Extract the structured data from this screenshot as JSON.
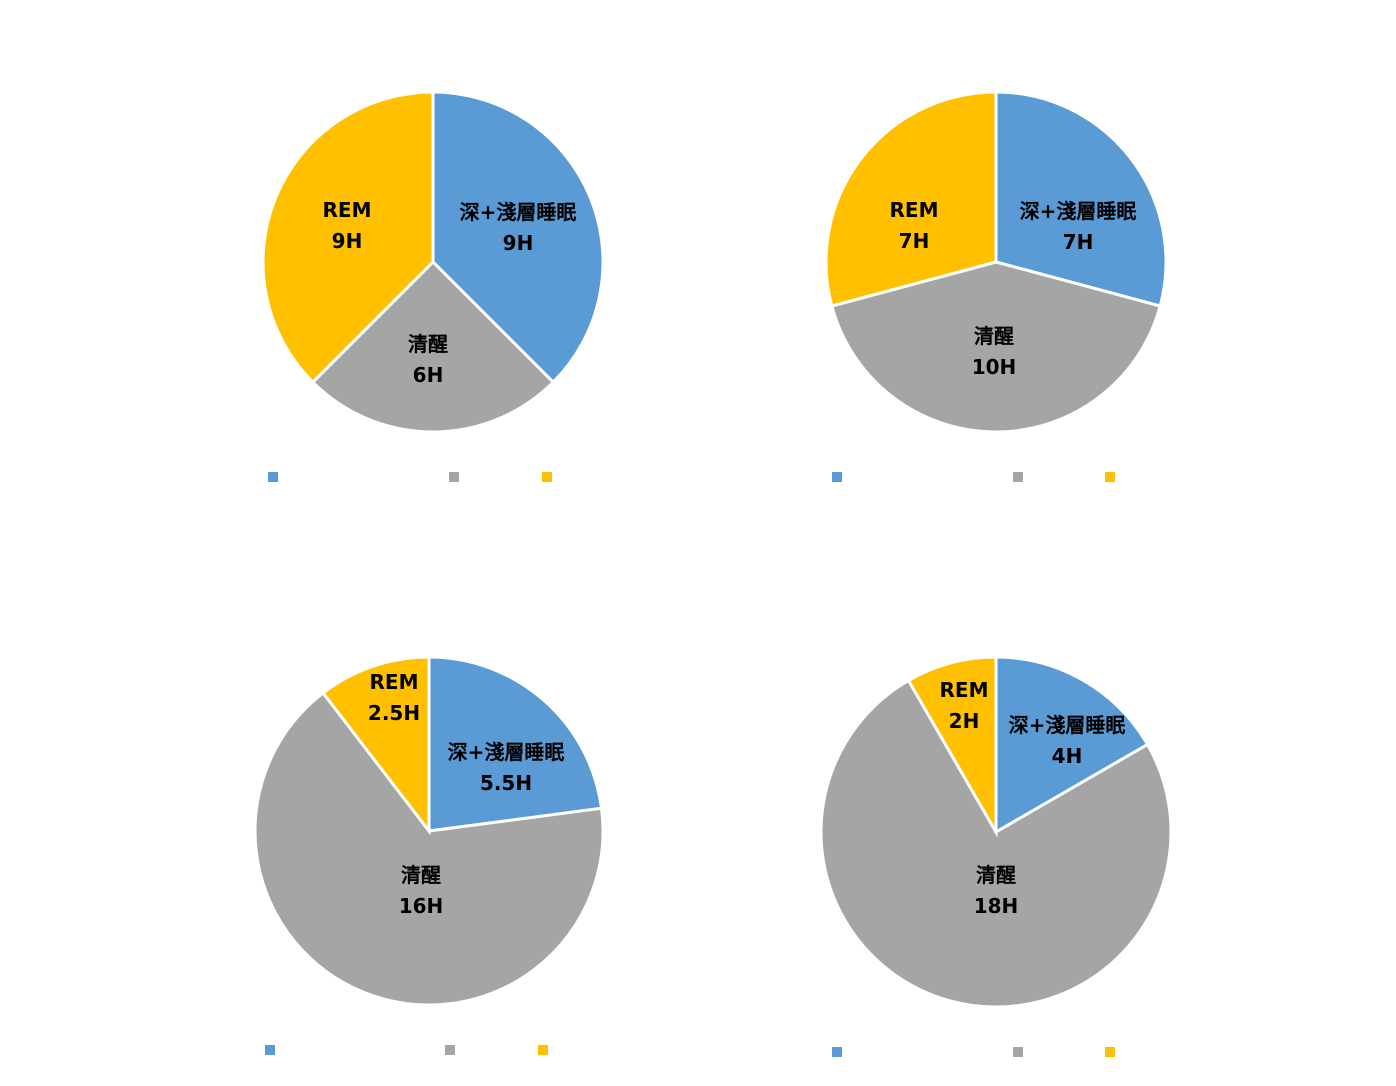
{
  "chart_data": [
    {
      "type": "pie",
      "categories": [
        "深+淺層睡眠",
        "清醒",
        "REM"
      ],
      "values": [
        9,
        6,
        9
      ],
      "labels": [
        "9H",
        "6H",
        "9H"
      ],
      "colors": [
        "#5B9BD5",
        "#A5A5A5",
        "#FFC000"
      ],
      "legend": "bottom"
    },
    {
      "type": "pie",
      "categories": [
        "深+淺層睡眠",
        "清醒",
        "REM"
      ],
      "values": [
        7,
        10,
        7
      ],
      "labels": [
        "7H",
        "10H",
        "7H"
      ],
      "colors": [
        "#5B9BD5",
        "#A5A5A5",
        "#FFC000"
      ],
      "legend": "bottom"
    },
    {
      "type": "pie",
      "categories": [
        "深+淺層睡眠",
        "清醒",
        "REM"
      ],
      "values": [
        5.5,
        16,
        2.5
      ],
      "labels": [
        "5.5H",
        "16H",
        "2.5H"
      ],
      "colors": [
        "#5B9BD5",
        "#A5A5A5",
        "#FFC000"
      ],
      "legend": "bottom"
    },
    {
      "type": "pie",
      "categories": [
        "深+淺層睡眠",
        "清醒",
        "REM"
      ],
      "values": [
        4,
        18,
        2
      ],
      "labels": [
        "4H",
        "18H",
        "2H"
      ],
      "colors": [
        "#5B9BD5",
        "#A5A5A5",
        "#FFC000"
      ],
      "legend": "bottom"
    }
  ]
}
